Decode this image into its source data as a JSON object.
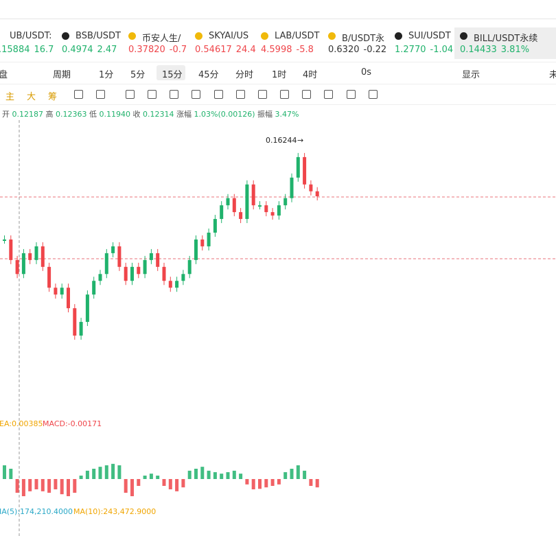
{
  "tickers": [
    {
      "name": "UB/USDT:",
      "price": ".15884",
      "change": "16.7",
      "color": "#20b26c"
    },
    {
      "name": "BSB/USDT",
      "price": "0.4974",
      "change": "2.47",
      "color": "#20b26c"
    },
    {
      "name": "币安人生/",
      "price": "0.37820",
      "change": "-0.7",
      "color": "#ef454a"
    },
    {
      "name": "SKYAI/US",
      "price": "0.54617",
      "change": "24.4",
      "color": "#ef454a"
    },
    {
      "name": "LAB/USDT",
      "price": "4.5998",
      "change": "-5.8",
      "color": "#ef454a"
    },
    {
      "name": "B/USDT永",
      "price": "0.6320",
      "change": "-0.22",
      "color": "#333333"
    },
    {
      "name": "SUI/USDT",
      "price": "1.2770",
      "change": "-1.04",
      "color": "#20b26c"
    },
    {
      "name": "BILL/USDT永续",
      "price": "0.14433",
      "change": "3.81%",
      "color": "#20b26c"
    }
  ],
  "toolbar": [
    "盘",
    "周期",
    "1分",
    "5分",
    "15分",
    "45分",
    "分时",
    "1时",
    "4时",
    "0s",
    "显示",
    "未"
  ],
  "tools": [
    "主",
    "大",
    "筹"
  ],
  "info": {
    "open_label": "开",
    "open": "0.12187",
    "high_label": "高",
    "high": "0.12363",
    "low_label": "低",
    "low": "0.11940",
    "close_label": "收",
    "close": "0.12314",
    "change_label": "涨幅",
    "change": "1.03%(0.00126)",
    "amp_label": "振幅",
    "amp": "3.47%"
  },
  "chart": {
    "high_marker": "0.16244",
    "price_range": [
      0.075,
      0.171
    ],
    "closes": [
      0.1304,
      0.1238,
      0.1193,
      0.126,
      0.1238,
      0.1282,
      0.1216,
      0.1149,
      0.1127,
      0.1149,
      0.1083,
      0.0995,
      0.1039,
      0.1127,
      0.1171,
      0.1193,
      0.126,
      0.1282,
      0.1216,
      0.1171,
      0.1216,
      0.1193,
      0.1238,
      0.126,
      0.1216,
      0.1171,
      0.1149,
      0.1171,
      0.1193,
      0.1238,
      0.1304,
      0.1282,
      0.1326,
      0.137,
      0.1414,
      0.1437,
      0.1392,
      0.137,
      0.1481,
      0.1414,
      0.1414,
      0.1392,
      0.1381,
      0.1414,
      0.1437,
      0.1503,
      0.1569,
      0.1481,
      0.1459,
      0.1443
    ]
  },
  "macd": {
    "dea_label": "EA:0.00385",
    "macd_label": "MACD:-0.00171",
    "range": [
      -0.0056,
      0.0056
    ],
    "hist": [
      0.0028,
      0.0021,
      -0.0028,
      -0.0035,
      -0.0025,
      -0.0021,
      -0.0025,
      -0.0028,
      -0.0021,
      -0.0031,
      -0.0035,
      -0.0028,
      0.0007,
      0.0017,
      0.0021,
      0.0025,
      0.0028,
      0.0031,
      0.0028,
      -0.0028,
      -0.0035,
      -0.0014,
      0.0007,
      0.0011,
      0.0007,
      -0.0014,
      -0.0021,
      -0.0025,
      -0.0017,
      0.0017,
      0.0021,
      0.0025,
      0.0017,
      0.0014,
      0.0011,
      0.0014,
      0.0017,
      0.0011,
      -0.0011,
      -0.0021,
      -0.002,
      -0.0017,
      -0.0014,
      -0.0011,
      0.0014,
      0.0021,
      0.0028,
      0.0017,
      -0.0014,
      -0.0017
    ]
  },
  "volume": {
    "ma5": "IA(5):174,210.4000",
    "ma10": "MA(10):243,472.9000"
  }
}
